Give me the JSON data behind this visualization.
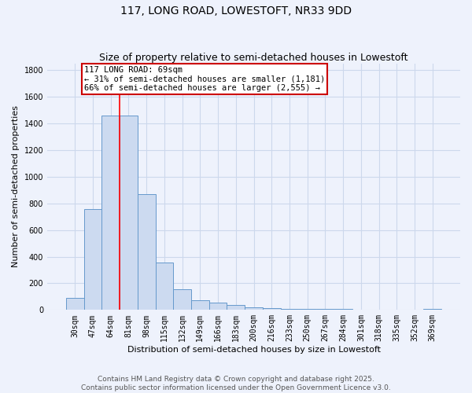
{
  "title_line1": "117, LONG ROAD, LOWESTOFT, NR33 9DD",
  "title_line2": "Size of property relative to semi-detached houses in Lowestoft",
  "xlabel": "Distribution of semi-detached houses by size in Lowestoft",
  "ylabel": "Number of semi-detached properties",
  "categories": [
    "30sqm",
    "47sqm",
    "64sqm",
    "81sqm",
    "98sqm",
    "115sqm",
    "132sqm",
    "149sqm",
    "166sqm",
    "183sqm",
    "200sqm",
    "216sqm",
    "233sqm",
    "250sqm",
    "267sqm",
    "284sqm",
    "301sqm",
    "318sqm",
    "335sqm",
    "352sqm",
    "369sqm"
  ],
  "values": [
    90,
    755,
    1460,
    1460,
    870,
    355,
    155,
    75,
    55,
    35,
    20,
    15,
    10,
    5,
    5,
    5,
    2,
    2,
    2,
    2,
    10
  ],
  "bar_color": "#ccdaf0",
  "bar_edge_color": "#6699cc",
  "grid_color": "#ccd8ec",
  "background_color": "#eef2fc",
  "red_line_x": 2.5,
  "property_label": "117 LONG ROAD: 69sqm",
  "smaller_pct": "31%",
  "smaller_count": "1,181",
  "larger_pct": "66%",
  "larger_count": "2,555",
  "annotation_box_color": "#cc0000",
  "ylim": [
    0,
    1850
  ],
  "yticks": [
    0,
    200,
    400,
    600,
    800,
    1000,
    1200,
    1400,
    1600,
    1800
  ],
  "footer_line1": "Contains HM Land Registry data © Crown copyright and database right 2025.",
  "footer_line2": "Contains public sector information licensed under the Open Government Licence v3.0.",
  "title_fontsize": 10,
  "subtitle_fontsize": 9,
  "axis_label_fontsize": 8,
  "tick_fontsize": 7,
  "annotation_fontsize": 7.5,
  "footer_fontsize": 6.5
}
